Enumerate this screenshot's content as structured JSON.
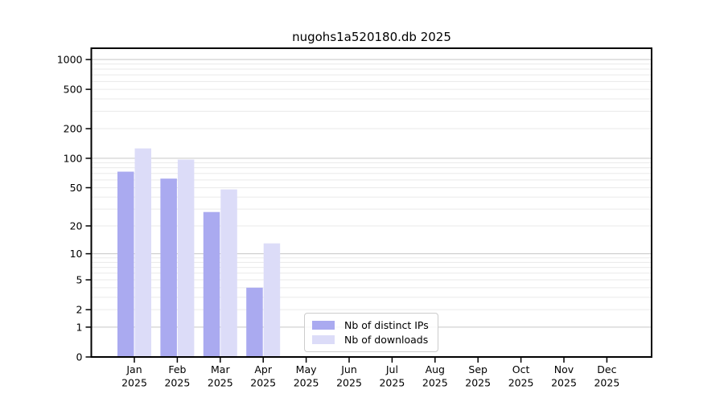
{
  "title": "nugohs1a520180.db 2025",
  "chart_data": {
    "type": "bar",
    "title": "nugohs1a520180.db 2025",
    "categories": [
      "Jan",
      "Feb",
      "Mar",
      "Apr",
      "May",
      "Jun",
      "Jul",
      "Aug",
      "Sep",
      "Oct",
      "Nov",
      "Dec"
    ],
    "x_tick_year": "2025",
    "series": [
      {
        "name": "Nb of distinct IPs",
        "color": "#aaaaf0",
        "values": [
          73,
          62,
          28,
          4,
          0,
          0,
          0,
          0,
          0,
          0,
          0,
          0
        ]
      },
      {
        "name": "Nb of downloads",
        "color": "#dcdcf8",
        "values": [
          126,
          97,
          48,
          13,
          0,
          0,
          0,
          0,
          0,
          0,
          0,
          0
        ]
      }
    ],
    "yscale": "log1p",
    "yticks": [
      0,
      1,
      2,
      5,
      10,
      20,
      50,
      100,
      200,
      500,
      1000
    ],
    "decade_gridlines": [
      1,
      10,
      100,
      1000
    ],
    "ylim_top_value": 1300,
    "grid": "on",
    "legend_position": "lower-center",
    "colors": {
      "major_grid": "#c6c6c6",
      "minor_grid": "#eaeaea",
      "axis": "#000000",
      "bar_ips": "#aaaaf0",
      "bar_downloads": "#dcdcf8"
    }
  },
  "legend": {
    "items": [
      "Nb of distinct IPs",
      "Nb of downloads"
    ]
  }
}
